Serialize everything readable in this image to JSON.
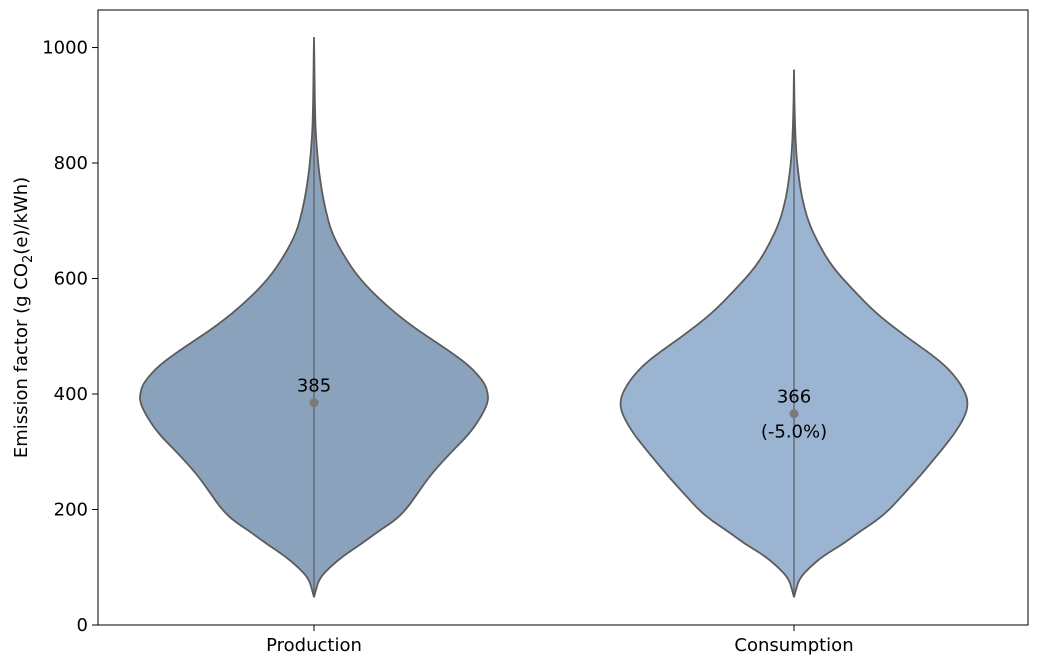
{
  "chart_data": {
    "type": "violin",
    "title": "",
    "xlabel": "",
    "ylabel": {
      "prefix": "Emission factor (g CO",
      "subscript": "2",
      "suffix": "(e)/kWh)"
    },
    "ylim": [
      0,
      1065
    ],
    "yticks": [
      0,
      200,
      400,
      600,
      800,
      1000
    ],
    "grid": false,
    "categories": [
      "Production",
      "Consumption"
    ],
    "series": [
      {
        "category": "Production",
        "fill_color": "#8aa2bc",
        "mean": 385,
        "mean_label": "385",
        "change_label": "",
        "min": 48,
        "max": 1018,
        "density_profile": [
          [
            48,
            0
          ],
          [
            60,
            0.01
          ],
          [
            80,
            0.03
          ],
          [
            100,
            0.09
          ],
          [
            120,
            0.17
          ],
          [
            140,
            0.27
          ],
          [
            160,
            0.36
          ],
          [
            180,
            0.46
          ],
          [
            200,
            0.53
          ],
          [
            230,
            0.6
          ],
          [
            260,
            0.67
          ],
          [
            300,
            0.79
          ],
          [
            330,
            0.89
          ],
          [
            360,
            0.96
          ],
          [
            385,
            1.0
          ],
          [
            400,
            1.0
          ],
          [
            420,
            0.98
          ],
          [
            450,
            0.89
          ],
          [
            480,
            0.75
          ],
          [
            520,
            0.55
          ],
          [
            560,
            0.39
          ],
          [
            600,
            0.26
          ],
          [
            640,
            0.17
          ],
          [
            680,
            0.1
          ],
          [
            720,
            0.065
          ],
          [
            760,
            0.04
          ],
          [
            800,
            0.023
          ],
          [
            850,
            0.01
          ],
          [
            900,
            0.005
          ],
          [
            950,
            0.003
          ],
          [
            1018,
            0
          ]
        ]
      },
      {
        "category": "Consumption",
        "fill_color": "#9ab4d2",
        "mean": 366,
        "mean_label": "366",
        "change_label": "(-5.0%)",
        "min": 48,
        "max": 962,
        "density_profile": [
          [
            48,
            0
          ],
          [
            60,
            0.01
          ],
          [
            80,
            0.03
          ],
          [
            100,
            0.09
          ],
          [
            120,
            0.17
          ],
          [
            140,
            0.28
          ],
          [
            160,
            0.37
          ],
          [
            180,
            0.47
          ],
          [
            200,
            0.55
          ],
          [
            230,
            0.64
          ],
          [
            260,
            0.73
          ],
          [
            300,
            0.84
          ],
          [
            330,
            0.92
          ],
          [
            360,
            0.98
          ],
          [
            380,
            1.0
          ],
          [
            400,
            0.99
          ],
          [
            430,
            0.93
          ],
          [
            460,
            0.83
          ],
          [
            500,
            0.64
          ],
          [
            540,
            0.47
          ],
          [
            580,
            0.34
          ],
          [
            620,
            0.22
          ],
          [
            660,
            0.14
          ],
          [
            700,
            0.08
          ],
          [
            740,
            0.045
          ],
          [
            780,
            0.025
          ],
          [
            820,
            0.012
          ],
          [
            870,
            0.005
          ],
          [
            920,
            0.002
          ],
          [
            962,
            0
          ]
        ]
      }
    ]
  }
}
